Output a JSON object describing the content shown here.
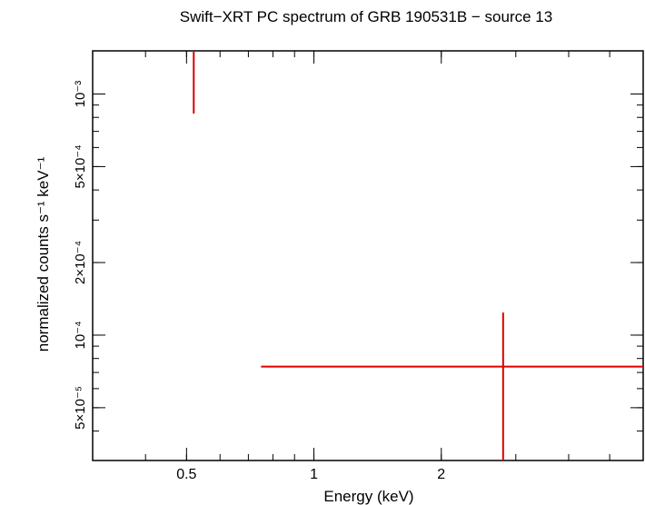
{
  "chart_data": {
    "type": "scatter",
    "title": "Swift−XRT PC spectrum of GRB 190531B − source 13",
    "xlabel": "Energy (keV)",
    "ylabel": "normalized counts s⁻¹ keV⁻¹",
    "x_scale": "log",
    "y_scale": "log",
    "xlim": [
      0.3,
      6.0
    ],
    "ylim": [
      3.02e-05,
      0.00151
    ],
    "x_ticks": [
      {
        "value": 0.5,
        "label": "0.5"
      },
      {
        "value": 1,
        "label": "1"
      },
      {
        "value": 2,
        "label": "2"
      }
    ],
    "y_ticks": [
      {
        "value": 5e-05,
        "label": "5×10⁻⁵"
      },
      {
        "value": 0.0001,
        "label": "10⁻⁴"
      },
      {
        "value": 0.0002,
        "label": "2×10⁻⁴"
      },
      {
        "value": 0.0005,
        "label": "5×10⁻⁴"
      },
      {
        "value": 0.001,
        "label": "10⁻³"
      }
    ],
    "grid": false,
    "series": [
      {
        "color": "#e00000",
        "points": [
          {
            "x": 0.52,
            "x_low": 0.52,
            "x_high": 0.52,
            "y_low": 0.00083,
            "y_high": 0.00151
          },
          {
            "x": 2.8,
            "x_low": 0.75,
            "x_high": 6.0,
            "y": 7.4e-05,
            "y_low": 3.02e-05,
            "y_high": 0.000124
          }
        ]
      }
    ]
  }
}
